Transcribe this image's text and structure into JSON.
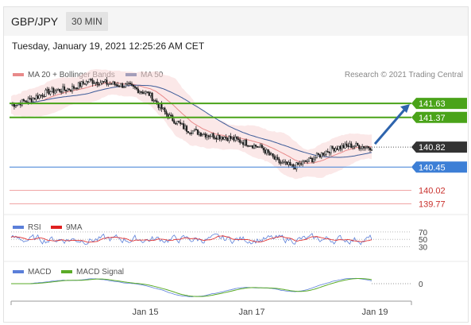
{
  "header": {
    "symbol": "GBP/JPY",
    "timeframe": "30 MIN"
  },
  "datetime": "Tuesday, January 19, 2021 12:25:26 AM CET",
  "price_legend": {
    "ma20_bb": "MA 20 + Bollinger Bands",
    "ma50": "MA 50",
    "credit": "Research © 2021 Trading Central"
  },
  "rsi_legend": {
    "rsi": "RSI",
    "ma9": "9MA"
  },
  "macd_legend": {
    "macd": "MACD",
    "signal": "MACD Signal"
  },
  "x_labels": [
    "Jan 15",
    "Jan 17",
    "Jan 19"
  ],
  "colors": {
    "resistance": "#4aa319",
    "support": "#3d7fd6",
    "target": "#d9534f",
    "current": "#333333",
    "ma20": "#e88a8a",
    "ma50": "#3d5c99",
    "bands": "#f7d6d6",
    "arrow": "#2e64ad",
    "rsi": "#5b7fd9",
    "rsi_ma": "#e02020",
    "macd": "#5b7fd9",
    "macd_signal": "#5aab27"
  },
  "chart_data": [
    {
      "type": "candlestick",
      "title": "GBP/JPY 30 MIN",
      "ylim": [
        139.6,
        142.0
      ],
      "series_names": [
        "MA 20 + Bollinger Bands",
        "MA 50"
      ],
      "x_labels": [
        "Jan 15",
        "Jan 17",
        "Jan 19"
      ],
      "levels": [
        {
          "label": "141.63",
          "value": 141.63,
          "kind": "resistance"
        },
        {
          "label": "141.37",
          "value": 141.37,
          "kind": "resistance"
        },
        {
          "label": "140.82",
          "value": 140.82,
          "kind": "current"
        },
        {
          "label": "140.45",
          "value": 140.45,
          "kind": "support"
        },
        {
          "label": "140.02",
          "value": 140.02,
          "kind": "target"
        },
        {
          "label": "139.77",
          "value": 139.77,
          "kind": "target"
        }
      ],
      "close_path": [
        [
          0,
          141.6
        ],
        [
          12,
          141.7
        ],
        [
          24,
          141.85
        ],
        [
          38,
          141.9
        ],
        [
          50,
          142.05
        ],
        [
          62,
          142.0
        ],
        [
          75,
          141.95
        ],
        [
          88,
          141.8
        ],
        [
          100,
          141.4
        ],
        [
          112,
          141.15
        ],
        [
          125,
          141.05
        ],
        [
          138,
          141.0
        ],
        [
          150,
          140.9
        ],
        [
          160,
          140.8
        ],
        [
          170,
          140.55
        ],
        [
          180,
          140.45
        ],
        [
          192,
          140.6
        ],
        [
          205,
          140.8
        ],
        [
          218,
          140.85
        ],
        [
          230,
          140.82
        ]
      ],
      "projection": {
        "from": 140.82,
        "to": 141.63
      }
    },
    {
      "type": "line",
      "title": "RSI",
      "series": [
        {
          "name": "RSI"
        },
        {
          "name": "9MA"
        }
      ],
      "levels": [
        70,
        50,
        30
      ]
    },
    {
      "type": "line",
      "title": "MACD",
      "series": [
        {
          "name": "MACD"
        },
        {
          "name": "MACD Signal"
        }
      ],
      "levels": [
        0
      ]
    }
  ]
}
